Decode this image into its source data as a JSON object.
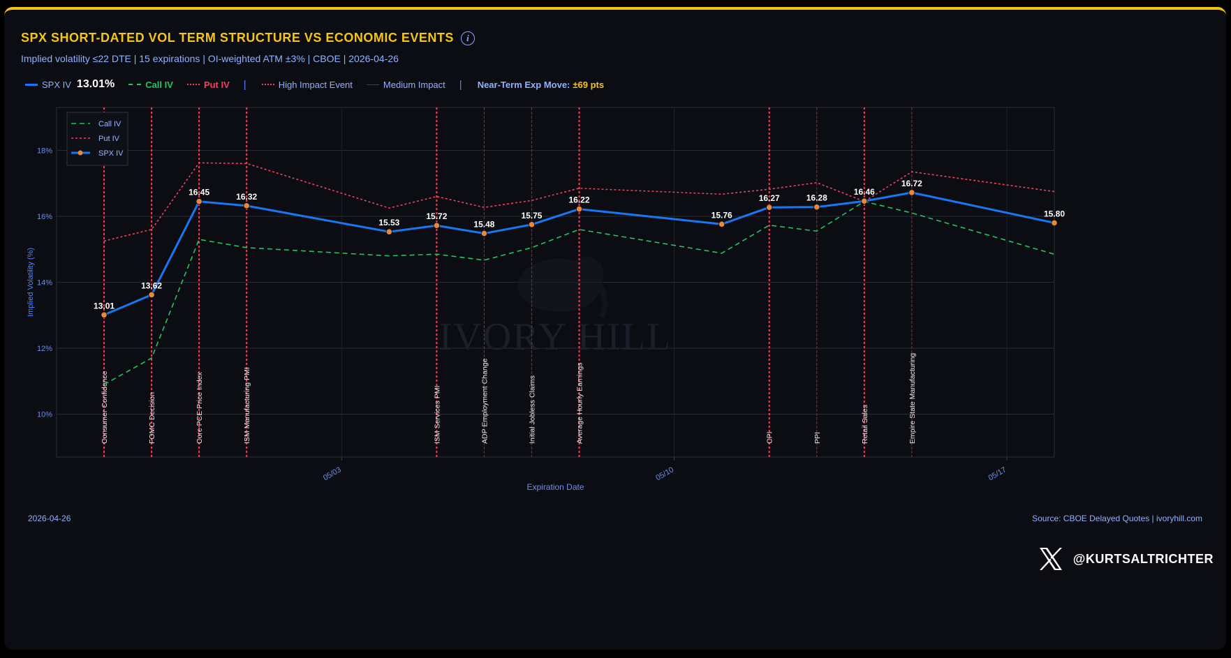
{
  "header": {
    "title": "SPX SHORT-DATED VOL TERM STRUCTURE VS ECONOMIC EVENTS",
    "subtitle": "Implied volatility ≤22 DTE | 15 expirations | OI-weighted ATM ±3% | CBOE | 2026-04-26"
  },
  "legend": {
    "spx_label": "SPX IV",
    "spx_value": "13.01%",
    "call_label": "Call IV",
    "put_label": "Put IV",
    "high_label": "High Impact Event",
    "medium_label": "Medium Impact",
    "move_label": "Near-Term Exp Move:",
    "move_value": "±69 pts"
  },
  "footer": {
    "date": "2026-04-26",
    "source": "Source: CBOE Delayed Quotes | ivoryhill.com",
    "handle": "@KURTSALTRICHTER"
  },
  "watermark": "IVORY HILL",
  "colors": {
    "spx": "#1877f2",
    "call": "#22c55e",
    "put": "#f43f5e",
    "high_event": "#f43f5e",
    "medium_event": "#7a2a35",
    "title": "#f5c518",
    "marker": "#e8883a"
  },
  "chart_data": {
    "type": "line",
    "xlabel": "Expiration Date",
    "ylabel": "Implied Volatility (%)",
    "ylim": [
      8.7,
      19.3
    ],
    "yticks": [
      10,
      12,
      14,
      16,
      18
    ],
    "ytick_labels": [
      "10%",
      "12%",
      "14%",
      "16%",
      "18%"
    ],
    "x_domain": [
      "2026-04-27",
      "2026-05-18"
    ],
    "xticks": [
      "2026-05-03",
      "2026-05-10",
      "2026-05-17"
    ],
    "xtick_labels": [
      "05/03",
      "05/10",
      "05/17"
    ],
    "grid": true,
    "legend_position": "top-left",
    "series": [
      {
        "name": "SPX IV",
        "x": [
          "2026-04-28",
          "2026-04-29",
          "2026-04-30",
          "2026-05-01",
          "2026-05-04",
          "2026-05-05",
          "2026-05-06",
          "2026-05-07",
          "2026-05-08",
          "2026-05-11",
          "2026-05-12",
          "2026-05-13",
          "2026-05-14",
          "2026-05-15",
          "2026-05-18"
        ],
        "values": [
          13.01,
          13.62,
          16.45,
          16.32,
          15.53,
          15.72,
          15.48,
          15.75,
          16.22,
          15.76,
          16.27,
          16.28,
          16.46,
          16.72,
          15.8
        ],
        "labels": [
          "13.01",
          "13.62",
          "16.45",
          "16.32",
          "15.53",
          "15.72",
          "15.48",
          "15.75",
          "16.22",
          "15.76",
          "16.27",
          "16.28",
          "16.46",
          "16.72",
          "15.80"
        ]
      },
      {
        "name": "Call IV",
        "x": [
          "2026-04-28",
          "2026-04-29",
          "2026-04-30",
          "2026-05-01",
          "2026-05-04",
          "2026-05-05",
          "2026-05-06",
          "2026-05-07",
          "2026-05-08",
          "2026-05-11",
          "2026-05-12",
          "2026-05-13",
          "2026-05-14",
          "2026-05-15",
          "2026-05-18"
        ],
        "values": [
          10.9,
          11.7,
          15.3,
          15.05,
          14.8,
          14.85,
          14.67,
          15.05,
          15.6,
          14.88,
          15.73,
          15.55,
          16.45,
          16.1,
          14.85
        ]
      },
      {
        "name": "Put IV",
        "x": [
          "2026-04-28",
          "2026-04-29",
          "2026-04-30",
          "2026-05-01",
          "2026-05-04",
          "2026-05-05",
          "2026-05-06",
          "2026-05-07",
          "2026-05-08",
          "2026-05-11",
          "2026-05-12",
          "2026-05-13",
          "2026-05-14",
          "2026-05-15",
          "2026-05-18"
        ],
        "values": [
          15.25,
          15.6,
          17.62,
          17.6,
          16.25,
          16.6,
          16.27,
          16.48,
          16.85,
          16.67,
          16.82,
          17.02,
          16.45,
          17.35,
          16.75
        ]
      }
    ],
    "events": [
      {
        "date": "2026-04-28",
        "label": "Consumer Confidence",
        "impact": "high"
      },
      {
        "date": "2026-04-29",
        "label": "FOMC Decision",
        "impact": "high"
      },
      {
        "date": "2026-04-30",
        "label": "Core PCE Price Index",
        "impact": "high"
      },
      {
        "date": "2026-05-01",
        "label": "ISM Manufacturing PMI",
        "impact": "high"
      },
      {
        "date": "2026-05-05",
        "label": "ISM Services PMI",
        "impact": "high"
      },
      {
        "date": "2026-05-06",
        "label": "ADP Employment Change",
        "impact": "medium"
      },
      {
        "date": "2026-05-07",
        "label": "Initial Jobless Claims",
        "impact": "medium"
      },
      {
        "date": "2026-05-08",
        "label": "Average Hourly Earnings",
        "impact": "high"
      },
      {
        "date": "2026-05-12",
        "label": "CPI",
        "impact": "high"
      },
      {
        "date": "2026-05-13",
        "label": "PPI",
        "impact": "medium"
      },
      {
        "date": "2026-05-14",
        "label": "Retail Sales",
        "impact": "high"
      },
      {
        "date": "2026-05-15",
        "label": "Empire State Manufacturing",
        "impact": "medium"
      }
    ]
  }
}
